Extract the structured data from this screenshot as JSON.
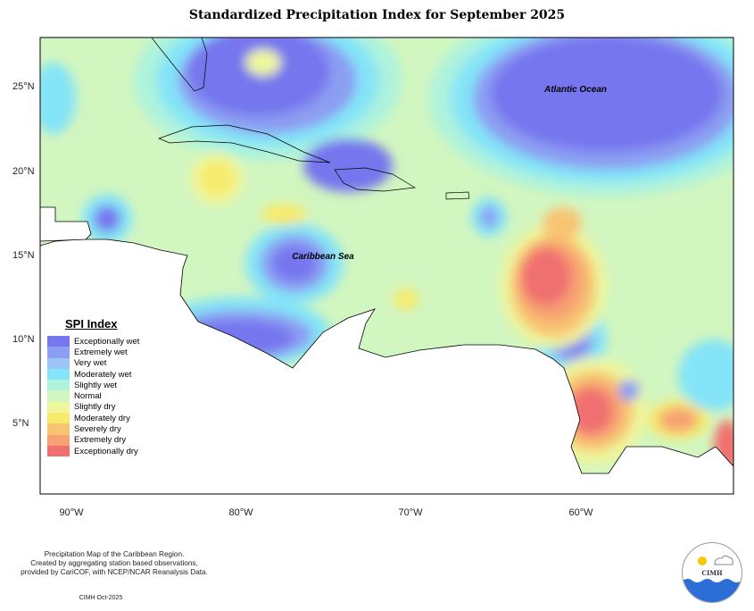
{
  "title": "Standardized Precipitation Index for September 2025",
  "map": {
    "labels": {
      "atlantic": "Atlantic Ocean",
      "caribbean": "Caribbean Sea"
    },
    "lat_ticks": [
      "25°N",
      "20°N",
      "15°N",
      "10°N",
      "5°N"
    ],
    "lon_ticks": [
      "90°W",
      "80°W",
      "70°W",
      "60°W"
    ]
  },
  "legend": {
    "title": "SPI Index",
    "items": [
      {
        "label": "Exceptionally wet",
        "color": "#7676ee"
      },
      {
        "label": "Extremely wet",
        "color": "#8c9ef2"
      },
      {
        "label": "Very wet",
        "color": "#9cc4f6"
      },
      {
        "label": "Moderately wet",
        "color": "#84e4f8"
      },
      {
        "label": "Slightly wet",
        "color": "#aef3dc"
      },
      {
        "label": "Normal",
        "color": "#d2f6c0"
      },
      {
        "label": "Slightly dry",
        "color": "#eef79c"
      },
      {
        "label": "Moderately dry",
        "color": "#f8ea6c"
      },
      {
        "label": "Severely dry",
        "color": "#f8c472"
      },
      {
        "label": "Extremely dry",
        "color": "#f7a272"
      },
      {
        "label": "Exceptionally dry",
        "color": "#f07070"
      }
    ]
  },
  "footer": {
    "lines": [
      "Precipitation Map of the Caribbean Region.",
      "Created by aggregating station based observations,",
      "provided by CariCOF, with NCEP/NCAR Reanalysis Data."
    ],
    "stamp": "CIMH Oct-2025",
    "logo_text": "CIMH"
  }
}
